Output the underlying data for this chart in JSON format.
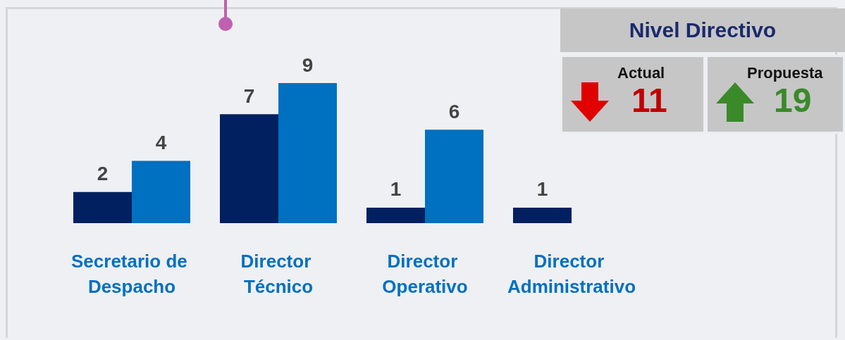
{
  "chart_data": [
    {
      "type": "bar",
      "categories": [
        "Secretario de Despacho",
        "Director Técnico",
        "Director Operativo",
        "Director Administrativo"
      ],
      "series": [
        {
          "color": "#002060",
          "values": [
            2,
            7,
            1,
            1
          ]
        },
        {
          "color": "#0070c0",
          "values": [
            4,
            9,
            6,
            null
          ]
        }
      ],
      "data_labels": true
    },
    {
      "type": "other",
      "title": "Nivel Directivo",
      "annotations": [
        "Actual",
        "11",
        "Propuesta",
        "19"
      ]
    }
  ]
}
